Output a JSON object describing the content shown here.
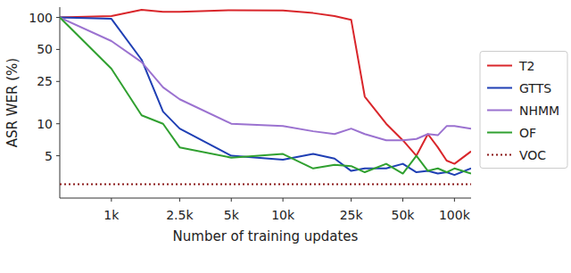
{
  "chart_data": {
    "type": "line",
    "x_label": "Number of training updates",
    "y_label": "ASR WER (%)",
    "log": true,
    "grid": false,
    "legend": "right",
    "xlim": [
      500,
      125000
    ],
    "ylim": [
      2,
      125
    ],
    "xticks": [
      {
        "value": 1000,
        "label": "1k"
      },
      {
        "value": 2500,
        "label": "2.5k"
      },
      {
        "value": 5000,
        "label": "5k"
      },
      {
        "value": 10000,
        "label": "10k"
      },
      {
        "value": 25000,
        "label": "25k"
      },
      {
        "value": 50000,
        "label": "50k"
      },
      {
        "value": 100000,
        "label": "100k"
      }
    ],
    "yticks": [
      5,
      10,
      25,
      50,
      100
    ],
    "x": [
      500,
      1000,
      1500,
      2000,
      2500,
      5000,
      10000,
      15000,
      20000,
      25000,
      30000,
      40000,
      50000,
      60000,
      70000,
      80000,
      90000,
      100000,
      125000
    ],
    "series": [
      {
        "name": "T2",
        "color": "#d9262b",
        "line_style": "solid",
        "values": [
          100,
          103,
          118,
          113,
          113,
          117,
          116,
          110,
          103,
          95,
          18,
          10,
          7,
          5,
          8,
          6,
          4.5,
          4.2,
          5.5
        ]
      },
      {
        "name": "GTTS",
        "color": "#1f3fb4",
        "line_style": "solid",
        "values": [
          100,
          97,
          40,
          13,
          9,
          5,
          4.6,
          5.2,
          4.7,
          3.6,
          3.8,
          3.8,
          4.2,
          3.5,
          3.6,
          3.4,
          3.5,
          3.3,
          3.8
        ]
      },
      {
        "name": "NHMM",
        "color": "#9b72d0",
        "line_style": "solid",
        "values": [
          100,
          60,
          38,
          22,
          17,
          10,
          9.5,
          8.5,
          8,
          9,
          8,
          7,
          7,
          7.2,
          8,
          7.8,
          9.5,
          9.5,
          9
        ]
      },
      {
        "name": "OF",
        "color": "#30a030",
        "line_style": "solid",
        "values": [
          100,
          33,
          12,
          10,
          6,
          4.8,
          5.2,
          3.8,
          4.1,
          4,
          3.5,
          4.2,
          3.4,
          5,
          3.6,
          3.8,
          3.5,
          3.8,
          3.4
        ]
      },
      {
        "name": "VOC",
        "color": "#8b1a1a",
        "line_style": "dotted",
        "values": [
          2.7,
          2.7,
          2.7,
          2.7,
          2.7,
          2.7,
          2.7,
          2.7,
          2.7,
          2.7,
          2.7,
          2.7,
          2.7,
          2.7,
          2.7,
          2.7,
          2.7,
          2.7,
          2.7
        ]
      }
    ]
  }
}
